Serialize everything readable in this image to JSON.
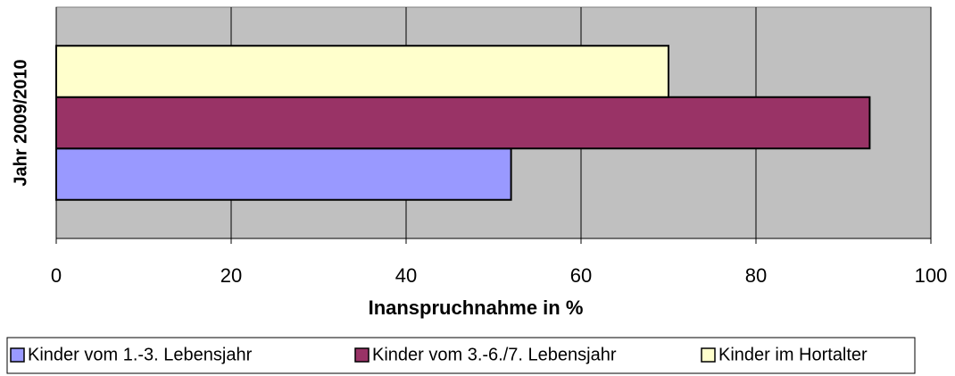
{
  "chart_data": {
    "type": "hbar",
    "categories": [
      "Jahr 2009/2010"
    ],
    "xlabel": "Inanspruchnahme in %",
    "series": [
      {
        "name": "Kinder vom 1.-3. Lebensjahr",
        "color": "#9999ff",
        "values": [
          52
        ]
      },
      {
        "name": "Kinder vom 3.-6./7. Lebensjahr",
        "color": "#993366",
        "values": [
          93
        ]
      },
      {
        "name": "Kinder im Hortalter",
        "color": "#ffffcc",
        "values": [
          70
        ]
      }
    ],
    "xlim": [
      0,
      100
    ],
    "xticks": [
      0,
      20,
      40,
      60,
      80,
      100
    ],
    "grid": true,
    "legend": "bottom"
  }
}
